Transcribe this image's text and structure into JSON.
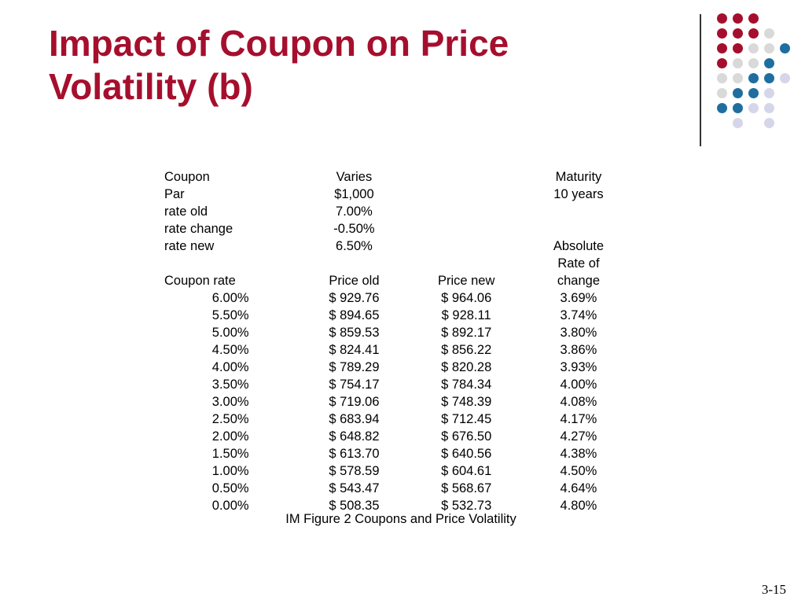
{
  "slide": {
    "title_line1": "Impact of Coupon on Price",
    "title_line2": "Volatility (b)",
    "slide_number": "3-15",
    "caption": "IM Figure 2 Coupons and Price Volatility"
  },
  "colors": {
    "title": "#a50f2d",
    "dot_red": "#a50f2d",
    "dot_gray": "#d9d9d9",
    "dot_blue": "#1f6e9f",
    "dot_lavender": "#d6d6ea"
  },
  "params": {
    "rows": [
      {
        "label": "Coupon",
        "value": "Varies",
        "extra": "Maturity"
      },
      {
        "label": "Par",
        "value": "$1,000",
        "extra": "10 years"
      },
      {
        "label": "rate old",
        "value": "7.00%",
        "extra": ""
      },
      {
        "label": "rate change",
        "value": "-0.50%",
        "extra": ""
      },
      {
        "label": "rate new",
        "value": "6.50%",
        "extra": "Absolute"
      }
    ]
  },
  "table": {
    "headers": [
      "Coupon rate",
      "Price old",
      "Price new",
      "Rate of",
      "change"
    ],
    "rows": [
      {
        "coupon": "6.00%",
        "old": "$ 929.76",
        "new": "$ 964.06",
        "change": "3.69%"
      },
      {
        "coupon": "5.50%",
        "old": "$ 894.65",
        "new": "$ 928.11",
        "change": "3.74%"
      },
      {
        "coupon": "5.00%",
        "old": "$ 859.53",
        "new": "$ 892.17",
        "change": "3.80%"
      },
      {
        "coupon": "4.50%",
        "old": "$ 824.41",
        "new": "$ 856.22",
        "change": "3.86%"
      },
      {
        "coupon": "4.00%",
        "old": "$ 789.29",
        "new": "$ 820.28",
        "change": "3.93%"
      },
      {
        "coupon": "3.50%",
        "old": "$ 754.17",
        "new": "$ 784.34",
        "change": "4.00%"
      },
      {
        "coupon": "3.00%",
        "old": "$ 719.06",
        "new": "$ 748.39",
        "change": "4.08%"
      },
      {
        "coupon": "2.50%",
        "old": "$ 683.94",
        "new": "$ 712.45",
        "change": "4.17%"
      },
      {
        "coupon": "2.00%",
        "old": "$ 648.82",
        "new": "$ 676.50",
        "change": "4.27%"
      },
      {
        "coupon": "1.50%",
        "old": "$ 613.70",
        "new": "$ 640.56",
        "change": "4.38%"
      },
      {
        "coupon": "1.00%",
        "old": "$ 578.59",
        "new": "$ 604.61",
        "change": "4.50%"
      },
      {
        "coupon": "0.50%",
        "old": "$ 543.47",
        "new": "$ 568.67",
        "change": "4.64%"
      },
      {
        "coupon": "0.00%",
        "old": "$ 508.35",
        "new": "$ 532.73",
        "change": "4.80%"
      }
    ]
  }
}
